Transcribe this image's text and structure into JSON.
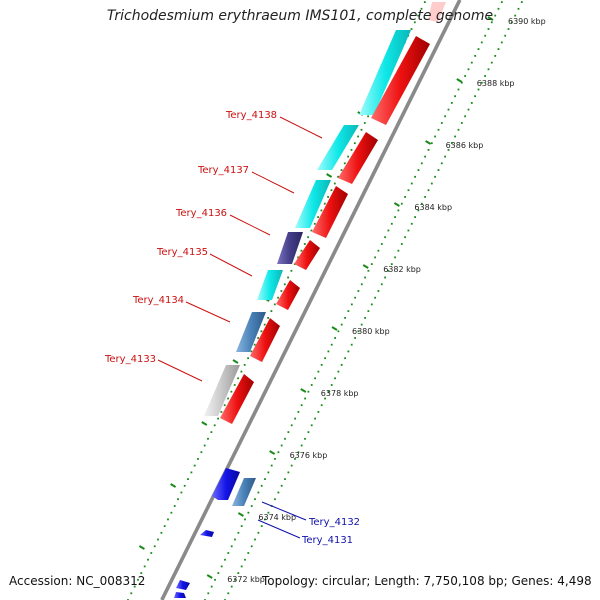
{
  "title": "Trichodesmium erythraeum IMS101, complete genome",
  "footer": {
    "accession": "Accession: NC_008312",
    "summary": "Topology: circular; Length: 7,750,108 bp; Genes: 4,498"
  },
  "colors": {
    "forward_cds": "#ee1111",
    "cyan_gene": "#10e8e8",
    "steelblue_gene": "#4a82b8",
    "darkblue_gene": "#443e88",
    "grey_gene": "#c8c8c8",
    "reverse_gene": "#1414e6",
    "backbone": "#7a7a7a",
    "ticks": "#1a8a1a",
    "label_red": "#cc1111",
    "label_blue": "#1111aa"
  },
  "scale_ticks": [
    "6390 kbp",
    "6388 kbp",
    "6386 kbp",
    "6384 kbp",
    "6382 kbp",
    "6380 kbp",
    "6378 kbp",
    "6376 kbp",
    "6374 kbp",
    "6372 kbp"
  ],
  "gene_labels": [
    {
      "text": "Tery_4138",
      "strand": "forward"
    },
    {
      "text": "Tery_4137",
      "strand": "forward"
    },
    {
      "text": "Tery_4136",
      "strand": "forward"
    },
    {
      "text": "Tery_4135",
      "strand": "forward"
    },
    {
      "text": "Tery_4134",
      "strand": "forward"
    },
    {
      "text": "Tery_4133",
      "strand": "forward"
    },
    {
      "text": "Tery_4132",
      "strand": "reverse"
    },
    {
      "text": "Tery_4131",
      "strand": "reverse"
    }
  ]
}
